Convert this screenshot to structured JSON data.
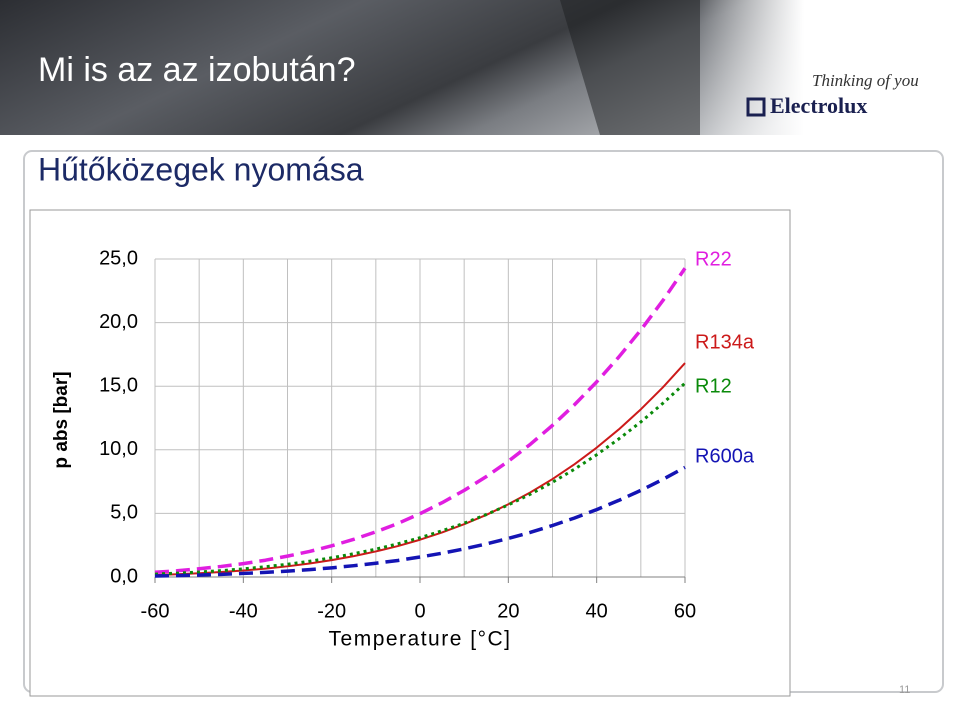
{
  "header": {
    "title": "Mi is az az izobután?",
    "logo_tagline": "Thinking of you",
    "logo_brand": "Electrolux"
  },
  "slide": {
    "subtitle": "Hűtőközegek nyomása",
    "page_number": "11"
  },
  "chart_data": {
    "type": "line",
    "x_label": "Temperature [°C]",
    "y_label": "p abs [bar]",
    "x": [
      -60,
      -55,
      -50,
      -45,
      -40,
      -35,
      -30,
      -25,
      -20,
      -15,
      -10,
      -5,
      0,
      5,
      10,
      15,
      20,
      25,
      30,
      35,
      40,
      45,
      50,
      55,
      60
    ],
    "series": [
      {
        "name": "R22",
        "color": "#e01ee0",
        "line_style": "dashed",
        "values": [
          0.37,
          0.49,
          0.65,
          0.83,
          1.05,
          1.32,
          1.64,
          2.01,
          2.45,
          2.96,
          3.55,
          4.21,
          4.98,
          5.84,
          6.81,
          7.89,
          9.1,
          10.44,
          11.92,
          13.55,
          15.34,
          17.29,
          19.42,
          21.74,
          24.27
        ]
      },
      {
        "name": "R134a",
        "color": "#cc1a1a",
        "line_style": "solid",
        "values": [
          0.16,
          0.22,
          0.29,
          0.39,
          0.51,
          0.66,
          0.84,
          1.06,
          1.33,
          1.64,
          2.01,
          2.43,
          2.93,
          3.5,
          4.15,
          4.88,
          5.72,
          6.65,
          7.7,
          8.87,
          10.17,
          11.6,
          13.18,
          14.91,
          16.82
        ]
      },
      {
        "name": "R12",
        "color": "#0a8a0a",
        "line_style": "dotted",
        "values": [
          0.23,
          0.3,
          0.39,
          0.5,
          0.64,
          0.81,
          1.0,
          1.24,
          1.51,
          1.83,
          2.19,
          2.61,
          3.09,
          3.63,
          4.23,
          4.91,
          5.67,
          6.51,
          7.45,
          8.48,
          9.61,
          10.85,
          12.19,
          13.66,
          15.24
        ]
      },
      {
        "name": "R600a",
        "color": "#1414b4",
        "line_style": "dashed",
        "values": [
          0.08,
          0.11,
          0.15,
          0.21,
          0.28,
          0.36,
          0.46,
          0.58,
          0.72,
          0.89,
          1.08,
          1.3,
          1.57,
          1.87,
          2.21,
          2.6,
          3.03,
          3.51,
          4.05,
          4.64,
          5.3,
          6.02,
          6.81,
          7.68,
          8.62
        ]
      }
    ],
    "xlim": [
      -60,
      60
    ],
    "xticks": [
      -60,
      -40,
      -20,
      0,
      20,
      40,
      60
    ],
    "x_minor_ticks": [
      -50,
      -30,
      -10,
      10,
      30,
      50
    ],
    "ylim": [
      0,
      25
    ],
    "yticks": [
      {
        "value": 0,
        "label": "0,0"
      },
      {
        "value": 5,
        "label": "5,0"
      },
      {
        "value": 10,
        "label": "10,0"
      },
      {
        "value": 15,
        "label": "15,0"
      },
      {
        "value": 20,
        "label": "20,0"
      },
      {
        "value": 25,
        "label": "25,0"
      }
    ],
    "grid": true
  }
}
